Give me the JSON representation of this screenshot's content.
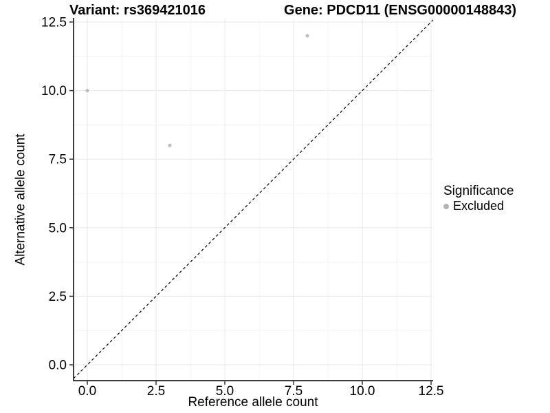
{
  "chart_data": {
    "type": "scatter",
    "titles": {
      "left": "Variant: rs369421016",
      "right": "Gene: PDCD11 (ENSG00000148843)"
    },
    "xlabel": "Reference allele count",
    "ylabel": "Alternative allele count",
    "xlim": [
      0,
      12.5
    ],
    "ylim": [
      0,
      12.5
    ],
    "xticks": {
      "values": [
        0,
        2.5,
        5,
        7.5,
        10,
        12.5
      ],
      "labels": [
        "0.0",
        "2.5",
        "5.0",
        "7.5",
        "10.0",
        "12.5"
      ]
    },
    "yticks": {
      "values": [
        0,
        2.5,
        5,
        7.5,
        10,
        12.5
      ],
      "labels": [
        "0.0",
        "2.5",
        "5.0",
        "7.5",
        "10.0",
        "12.5"
      ]
    },
    "minor_xticks": [
      1.25,
      3.75,
      6.25,
      8.75,
      11.25
    ],
    "minor_yticks": [
      1.25,
      3.75,
      6.25,
      8.75,
      11.25
    ],
    "grid": "major+minor",
    "series": [
      {
        "name": "Excluded",
        "color": "#bfbfbf",
        "marker": "circle",
        "points": [
          {
            "x": 0,
            "y": 10
          },
          {
            "x": 3,
            "y": 8
          },
          {
            "x": 8,
            "y": 12
          }
        ]
      }
    ],
    "reference_line": {
      "type": "identity",
      "slope": 1,
      "intercept": 0,
      "style": "dashed",
      "color": "#000000"
    },
    "legend": {
      "title": "Significance",
      "position": "right",
      "items": [
        {
          "label": "Excluded",
          "color": "#b3b3b3",
          "marker": "circle"
        }
      ]
    },
    "colors": {
      "background": "#ffffff",
      "grid_major": "#e8e8e8",
      "grid_minor": "#f4f4f4",
      "axis_line": "#3d3d3d",
      "tick_mark": "#333333",
      "text": "#000000"
    }
  }
}
